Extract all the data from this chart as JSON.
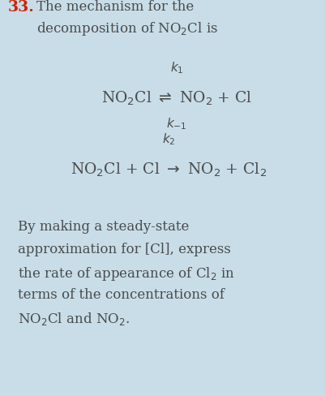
{
  "background_color": "#c8dde8",
  "fig_width": 4.02,
  "fig_height": 4.89,
  "dpi": 100,
  "number_text": "33.",
  "number_color": "#cc2200",
  "text_color": "#4a4a4a",
  "body_fontsize": 12.0,
  "eq_fontsize": 13.5,
  "k_fontsize": 11.0,
  "number_fontsize": 13.5,
  "line1": "The mechanism for the",
  "line2": "decomposition of NO$_2$Cl is",
  "eq1_main": "NO$_2$Cl $\\rightleftharpoons$ NO$_2$ + Cl",
  "eq1_k1": "$k_1$",
  "eq1_k_1": "$k_{-1}$",
  "eq2_main": "NO$_2$Cl + Cl $\\rightarrow$ NO$_2$ + Cl$_2$",
  "eq2_k2": "$k_2$",
  "para_lines": [
    "By making a steady-state",
    "approximation for [Cl], express",
    "the rate of appearance of Cl$_2$ in",
    "terms of the concentrations of",
    "NO$_2$Cl and NO$_2$."
  ]
}
